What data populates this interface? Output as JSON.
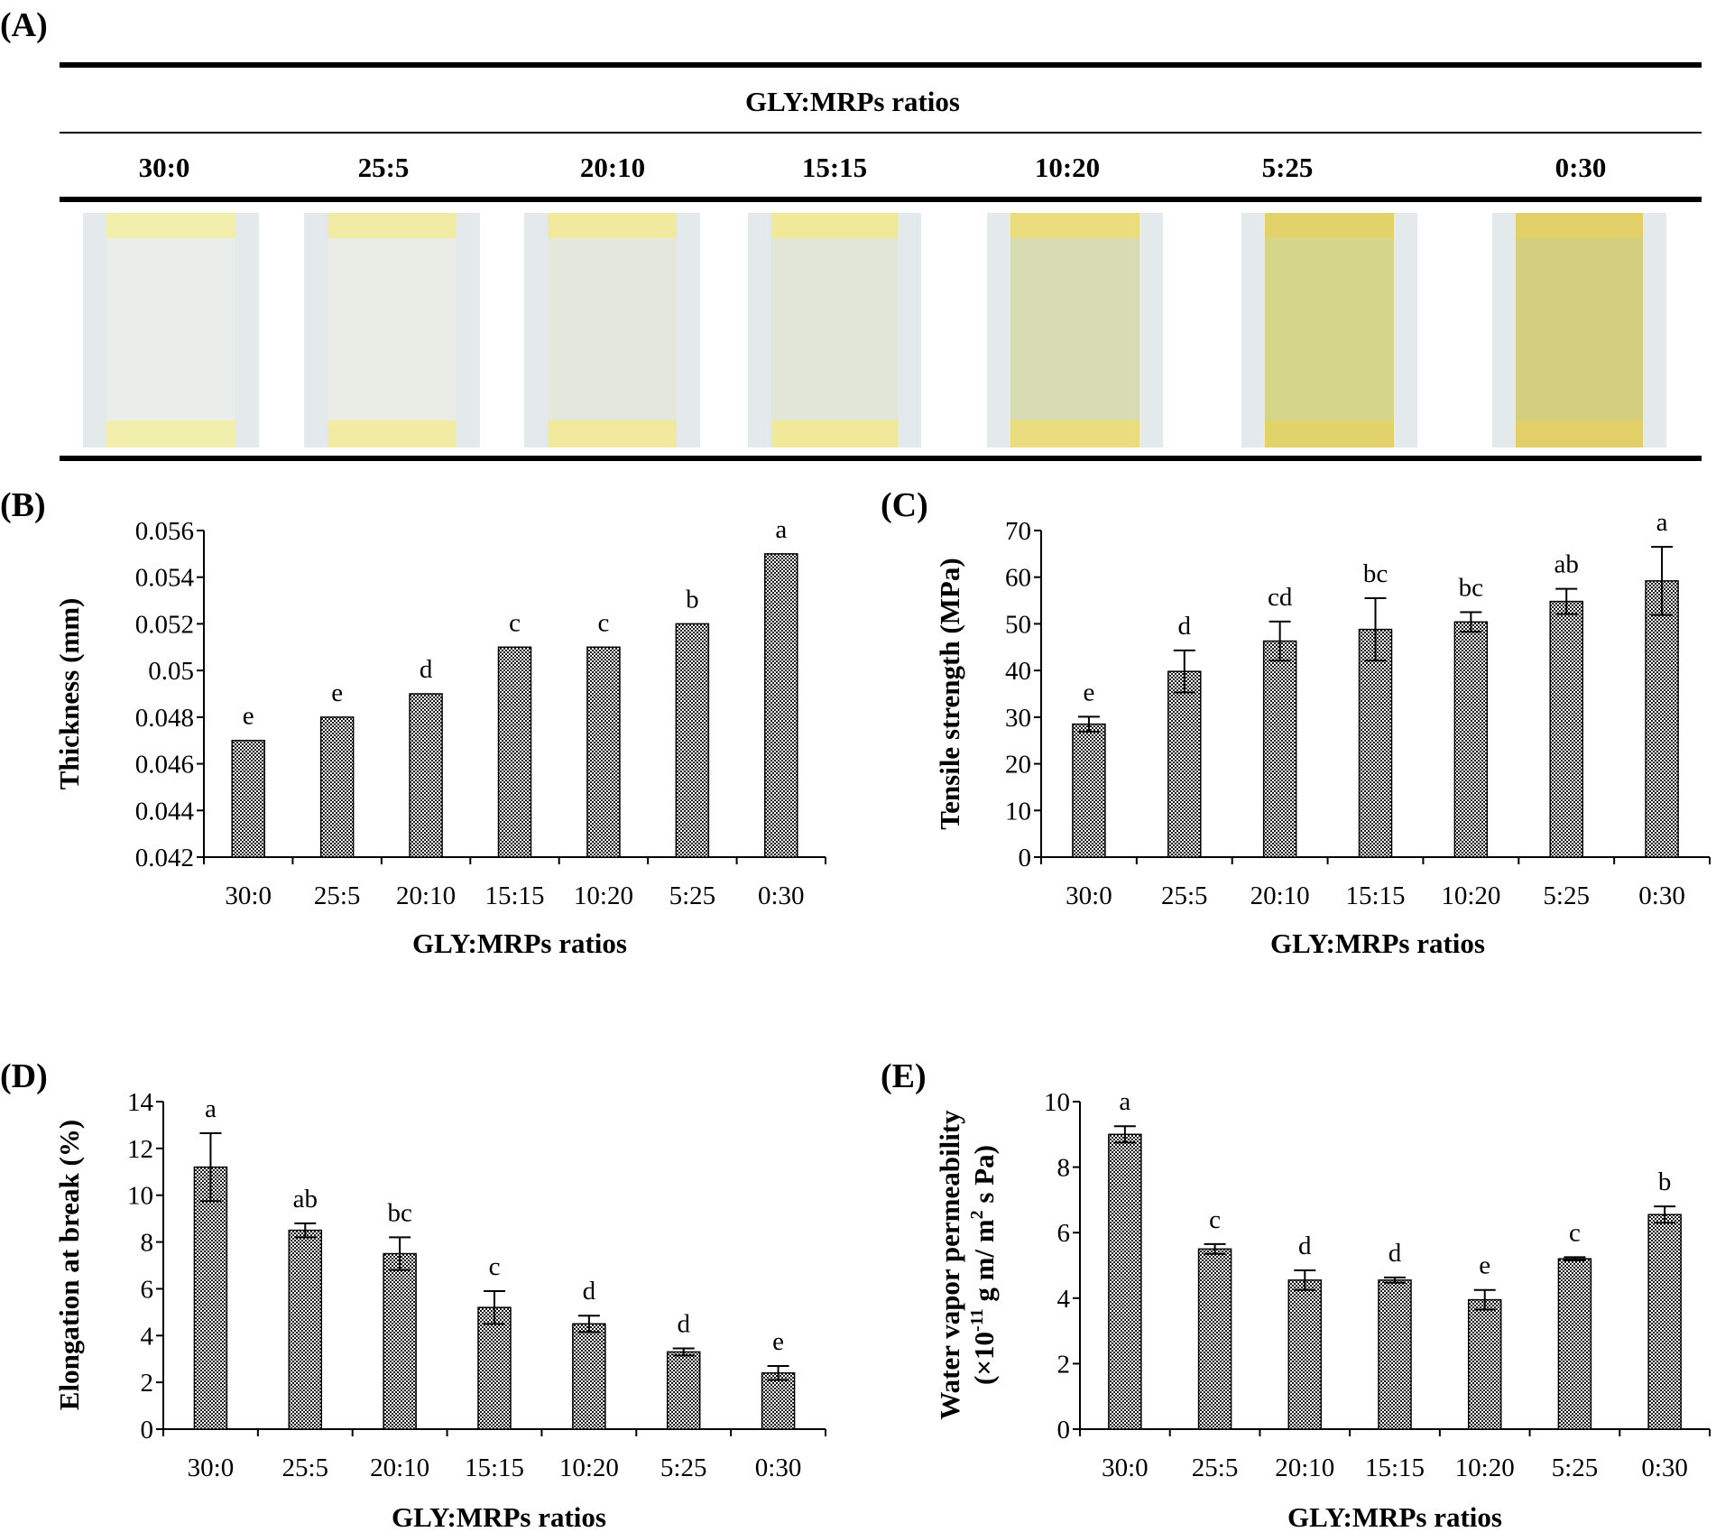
{
  "panel_a": {
    "label": "(A)",
    "header": "GLY:MRPs ratios",
    "ratios": [
      "30:0",
      "25:5",
      "20:10",
      "15:15",
      "10:20",
      "5:25",
      "0:30"
    ],
    "film_colors": [
      "#eaeeea",
      "#e8ece4",
      "#e3e7dc",
      "#e2e6d8",
      "#d8dcb2",
      "#d6d68a",
      "#d4cf7e"
    ],
    "tape_colors": [
      "#f2eeab",
      "#f1eba4",
      "#f1e99e",
      "#f1e99a",
      "#ebdc7e",
      "#e2d26a",
      "#e2cf68"
    ]
  },
  "chart_data": [
    {
      "id": "B",
      "panel_label": "(B)",
      "type": "bar",
      "categories": [
        "30:0",
        "25:5",
        "20:10",
        "15:15",
        "10:20",
        "5:25",
        "0:30"
      ],
      "values": [
        0.047,
        0.048,
        0.049,
        0.051,
        0.051,
        0.052,
        0.055
      ],
      "errors": [
        0,
        0,
        0,
        0,
        0,
        0,
        0
      ],
      "letters": [
        "e",
        "e",
        "d",
        "c",
        "c",
        "b",
        "a"
      ],
      "xlabel": "GLY:MRPs ratios",
      "ylabel": "Thickness (mm)",
      "ylim": [
        0.042,
        0.056
      ],
      "yticks": [
        0.042,
        0.044,
        0.046,
        0.048,
        0.05,
        0.052,
        0.054,
        0.056
      ],
      "ytick_labels": [
        "0.042",
        "0.044",
        "0.046",
        "0.048",
        "0.05",
        "0.052",
        "0.054",
        "0.056"
      ]
    },
    {
      "id": "C",
      "panel_label": "(C)",
      "type": "bar",
      "categories": [
        "30:0",
        "25:5",
        "20:10",
        "15:15",
        "10:20",
        "5:25",
        "0:30"
      ],
      "values": [
        28.5,
        39.8,
        46.3,
        48.8,
        50.4,
        54.8,
        59.2
      ],
      "errors": [
        1.6,
        4.5,
        4.2,
        6.7,
        2.1,
        2.7,
        7.3
      ],
      "letters": [
        "e",
        "d",
        "cd",
        "bc",
        "bc",
        "ab",
        "a"
      ],
      "xlabel": "GLY:MRPs ratios",
      "ylabel": "Tensile strength (MPa)",
      "ylim": [
        0,
        70
      ],
      "yticks": [
        0,
        10,
        20,
        30,
        40,
        50,
        60,
        70
      ],
      "ytick_labels": [
        "0",
        "10",
        "20",
        "30",
        "40",
        "50",
        "60",
        "70"
      ]
    },
    {
      "id": "D",
      "panel_label": "(D)",
      "type": "bar",
      "categories": [
        "30:0",
        "25:5",
        "20:10",
        "15:15",
        "10:20",
        "5:25",
        "0:30"
      ],
      "values": [
        11.2,
        8.5,
        7.5,
        5.2,
        4.5,
        3.3,
        2.4
      ],
      "errors": [
        1.45,
        0.3,
        0.7,
        0.7,
        0.35,
        0.15,
        0.3
      ],
      "letters": [
        "a",
        "ab",
        "bc",
        "c",
        "d",
        "d",
        "e"
      ],
      "xlabel": "GLY:MRPs ratios",
      "ylabel": "Elongation at break (%)",
      "ylim": [
        0,
        14
      ],
      "yticks": [
        0,
        2,
        4,
        6,
        8,
        10,
        12,
        14
      ],
      "ytick_labels": [
        "0",
        "2",
        "4",
        "6",
        "8",
        "10",
        "12",
        "14"
      ]
    },
    {
      "id": "E",
      "panel_label": "(E)",
      "type": "bar",
      "categories": [
        "30:0",
        "25:5",
        "20:10",
        "15:15",
        "10:20",
        "5:25",
        "0:30"
      ],
      "values": [
        9.0,
        5.5,
        4.55,
        4.55,
        3.95,
        5.2,
        6.55
      ],
      "errors": [
        0.25,
        0.15,
        0.3,
        0.08,
        0.3,
        0.05,
        0.25
      ],
      "letters": [
        "a",
        "c",
        "d",
        "d",
        "e",
        "c",
        "b"
      ],
      "xlabel": "GLY:MRPs ratios",
      "ylabel_line1": "Water vapor permeability",
      "ylabel_line2_pre": "(×10",
      "ylabel_line2_exp": "-11",
      "ylabel_line2_mid": " g m/ m",
      "ylabel_line2_exp2": "2",
      "ylabel_line2_post": " s Pa)",
      "ylim": [
        0,
        10
      ],
      "yticks": [
        0,
        2,
        4,
        6,
        8,
        10
      ],
      "ytick_labels": [
        "0",
        "2",
        "4",
        "6",
        "8",
        "10"
      ]
    }
  ]
}
